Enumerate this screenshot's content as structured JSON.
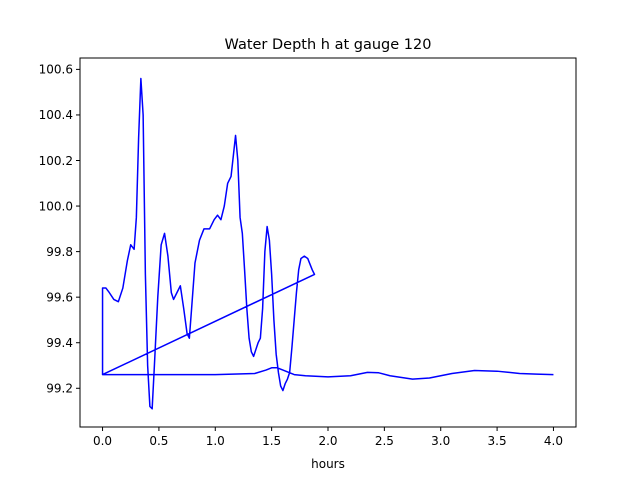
{
  "chart_data": {
    "type": "line",
    "title": "Water Depth h at gauge 120",
    "xlabel": "hours",
    "ylabel": "",
    "xlim": [
      -0.2,
      4.2
    ],
    "ylim": [
      99.03,
      100.65
    ],
    "xticks": [
      0.0,
      0.5,
      1.0,
      1.5,
      2.0,
      2.5,
      3.0,
      3.5,
      4.0
    ],
    "xtick_labels": [
      "0.0",
      "0.5",
      "1.0",
      "1.5",
      "2.0",
      "2.5",
      "3.0",
      "3.5",
      "4.0"
    ],
    "yticks": [
      99.2,
      99.4,
      99.6,
      99.8,
      100.0,
      100.2,
      100.4,
      100.6
    ],
    "ytick_labels": [
      "99.2",
      "99.4",
      "99.6",
      "99.8",
      "100.0",
      "100.2",
      "100.4",
      "100.6"
    ],
    "grid": false,
    "series": [
      {
        "color": "#0000ff",
        "points": [
          [
            0.0,
            99.26
          ],
          [
            0.0,
            99.64
          ],
          [
            0.03,
            99.64
          ],
          [
            0.06,
            99.62
          ],
          [
            0.1,
            99.59
          ],
          [
            0.14,
            99.58
          ],
          [
            0.18,
            99.64
          ],
          [
            0.22,
            99.76
          ],
          [
            0.25,
            99.83
          ],
          [
            0.28,
            99.81
          ],
          [
            0.3,
            99.95
          ],
          [
            0.32,
            100.3
          ],
          [
            0.34,
            100.56
          ],
          [
            0.36,
            100.4
          ],
          [
            0.38,
            99.7
          ],
          [
            0.4,
            99.3
          ],
          [
            0.42,
            99.12
          ],
          [
            0.44,
            99.11
          ],
          [
            0.46,
            99.3
          ],
          [
            0.49,
            99.6
          ],
          [
            0.52,
            99.83
          ],
          [
            0.55,
            99.88
          ],
          [
            0.58,
            99.78
          ],
          [
            0.61,
            99.62
          ],
          [
            0.63,
            99.59
          ],
          [
            0.66,
            99.62
          ],
          [
            0.69,
            99.65
          ],
          [
            0.72,
            99.55
          ],
          [
            0.75,
            99.44
          ],
          [
            0.77,
            99.42
          ],
          [
            0.79,
            99.55
          ],
          [
            0.82,
            99.75
          ],
          [
            0.86,
            99.85
          ],
          [
            0.9,
            99.9
          ],
          [
            0.95,
            99.9
          ],
          [
            0.99,
            99.94
          ],
          [
            1.02,
            99.96
          ],
          [
            1.05,
            99.94
          ],
          [
            1.08,
            100.0
          ],
          [
            1.11,
            100.1
          ],
          [
            1.14,
            100.13
          ],
          [
            1.16,
            100.22
          ],
          [
            1.18,
            100.31
          ],
          [
            1.2,
            100.2
          ],
          [
            1.22,
            99.95
          ],
          [
            1.24,
            99.88
          ],
          [
            1.26,
            99.72
          ],
          [
            1.28,
            99.55
          ],
          [
            1.3,
            99.42
          ],
          [
            1.32,
            99.36
          ],
          [
            1.34,
            99.34
          ],
          [
            1.36,
            99.37
          ],
          [
            1.38,
            99.4
          ],
          [
            1.4,
            99.42
          ],
          [
            1.42,
            99.55
          ],
          [
            1.44,
            99.8
          ],
          [
            1.46,
            99.91
          ],
          [
            1.48,
            99.85
          ],
          [
            1.5,
            99.7
          ],
          [
            1.52,
            99.5
          ],
          [
            1.54,
            99.35
          ],
          [
            1.56,
            99.27
          ],
          [
            1.58,
            99.21
          ],
          [
            1.6,
            99.19
          ],
          [
            1.62,
            99.22
          ],
          [
            1.64,
            99.24
          ],
          [
            1.66,
            99.27
          ],
          [
            1.68,
            99.38
          ],
          [
            1.7,
            99.5
          ],
          [
            1.72,
            99.62
          ],
          [
            1.74,
            99.72
          ],
          [
            1.76,
            99.77
          ],
          [
            1.79,
            99.78
          ],
          [
            1.82,
            99.77
          ],
          [
            1.86,
            99.72
          ],
          [
            1.88,
            99.7
          ],
          [
            0.0,
            99.26
          ],
          [
            0.4,
            99.26
          ],
          [
            1.0,
            99.26
          ],
          [
            1.35,
            99.265
          ],
          [
            1.45,
            99.28
          ],
          [
            1.5,
            99.29
          ],
          [
            1.55,
            99.29
          ],
          [
            1.6,
            99.28
          ],
          [
            1.7,
            99.26
          ],
          [
            1.8,
            99.255
          ],
          [
            2.0,
            99.25
          ],
          [
            2.2,
            99.255
          ],
          [
            2.35,
            99.27
          ],
          [
            2.45,
            99.268
          ],
          [
            2.55,
            99.255
          ],
          [
            2.75,
            99.24
          ],
          [
            2.9,
            99.245
          ],
          [
            3.1,
            99.265
          ],
          [
            3.3,
            99.278
          ],
          [
            3.5,
            99.275
          ],
          [
            3.7,
            99.265
          ],
          [
            3.85,
            99.262
          ],
          [
            4.0,
            99.26
          ]
        ]
      }
    ]
  }
}
